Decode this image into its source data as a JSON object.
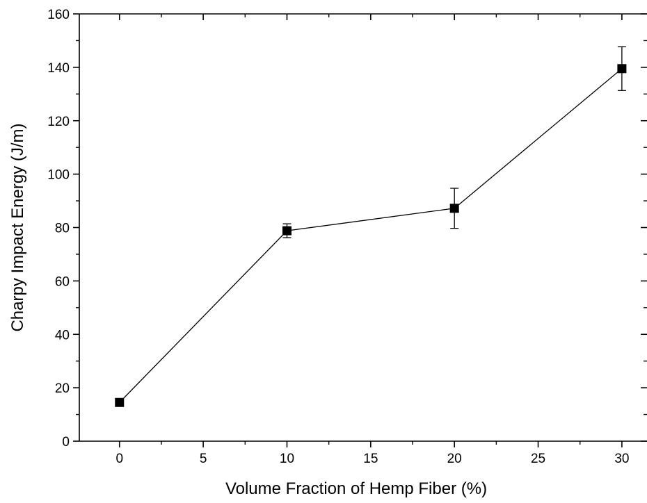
{
  "chart_data": {
    "type": "line",
    "xlabel": "Volume Fraction of Hemp Fiber (%)",
    "ylabel": "Charpy Impact Energy (J/m)",
    "xlim": [
      -2.4,
      31.5
    ],
    "ylim": [
      0,
      160
    ],
    "x_ticks": [
      0,
      5,
      10,
      15,
      20,
      25,
      30
    ],
    "y_ticks": [
      0,
      20,
      40,
      60,
      80,
      100,
      120,
      140,
      160
    ],
    "x_tick_labels": [
      "0",
      "5",
      "10",
      "15",
      "20",
      "25",
      "30"
    ],
    "y_tick_labels": [
      "0",
      "20",
      "40",
      "60",
      "80",
      "100",
      "120",
      "140",
      "160"
    ],
    "grid": false,
    "legend": "none",
    "marker": "square",
    "series": [
      {
        "x": [
          0,
          10,
          20,
          30
        ],
        "y": [
          14.5,
          78.8,
          87.2,
          139.5
        ],
        "error": [
          1.0,
          2.6,
          7.5,
          8.2
        ],
        "color": "#000000"
      }
    ]
  }
}
